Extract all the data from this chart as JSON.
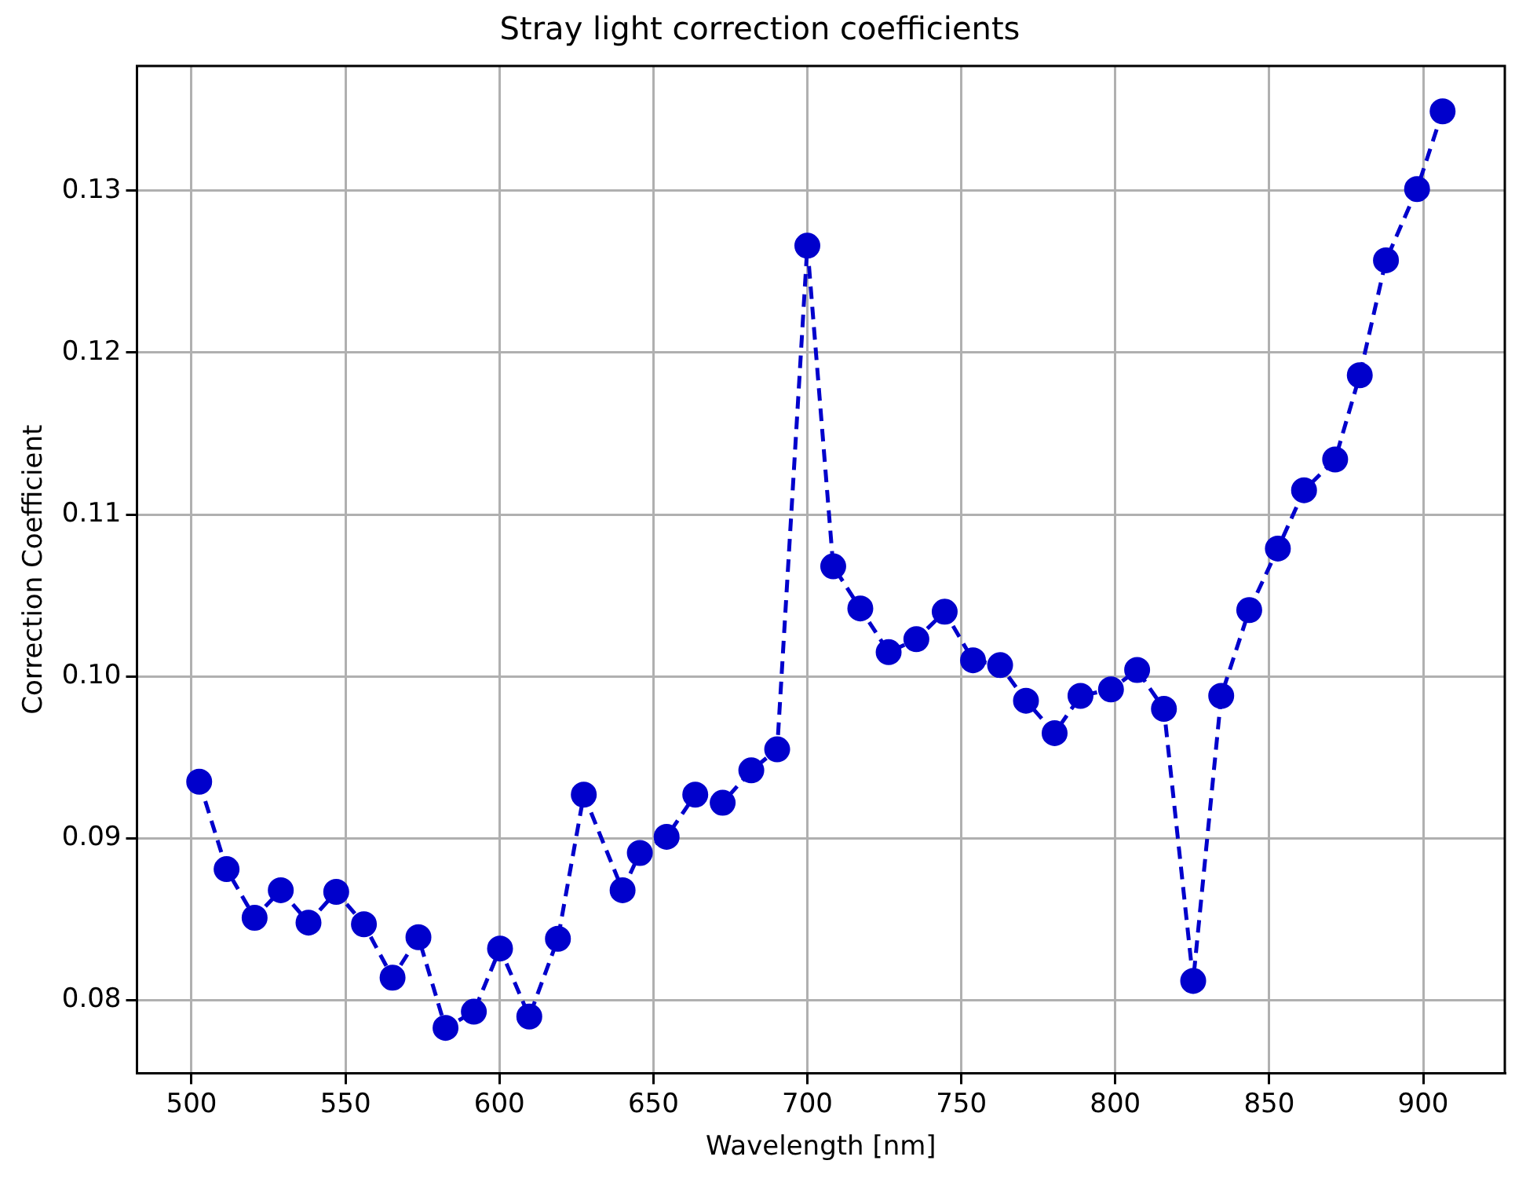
{
  "chart_data": {
    "type": "line",
    "title": "Stray light correction coefficients",
    "xlabel": "Wavelength [nm]",
    "ylabel": "Correction Coefficient",
    "x": [
      502.5,
      511.4,
      520.5,
      529,
      538,
      547,
      556,
      565.3,
      573.7,
      582.5,
      591.7,
      600.2,
      609.7,
      619,
      627.4,
      640,
      645.6,
      654.3,
      663.6,
      672.5,
      681.8,
      690.2,
      700,
      708.4,
      717.2,
      726.4,
      735.4,
      744.6,
      753.8,
      762.6,
      771,
      780.3,
      788.7,
      798.6,
      807.1,
      815.8,
      825.3,
      834.4,
      843.5,
      852.8,
      861.3,
      871.4,
      879.4,
      887.9,
      898,
      906.3
    ],
    "series": [
      {
        "color": "#0000cc",
        "values": [
          0.0935,
          0.0881,
          0.0851,
          0.0868,
          0.0848,
          0.0867,
          0.0847,
          0.0814,
          0.0839,
          0.0783,
          0.0793,
          0.0832,
          0.079,
          0.0838,
          0.0927,
          0.0868,
          0.0891,
          0.0901,
          0.0927,
          0.0922,
          0.0942,
          0.0955,
          0.1266,
          0.1068,
          0.1042,
          0.1015,
          0.1023,
          0.104,
          0.101,
          0.1007,
          0.0985,
          0.0965,
          0.0988,
          0.0992,
          0.1004,
          0.098,
          0.0812,
          0.0988,
          0.1041,
          0.1079,
          0.1115,
          0.1134,
          0.1186,
          0.1257,
          0.1301,
          0.1349
        ]
      }
    ],
    "xlim": [
      482.3,
      926.5
    ],
    "ylim": [
      0.0755,
      0.1377
    ],
    "xticks": [
      500,
      550,
      600,
      650,
      700,
      750,
      800,
      850,
      900
    ],
    "yticks": [
      {
        "value": 0.08,
        "label": "0.08"
      },
      {
        "value": 0.09,
        "label": "0.09"
      },
      {
        "value": 0.1,
        "label": "0.10"
      },
      {
        "value": 0.11,
        "label": "0.11"
      },
      {
        "value": 0.12,
        "label": "0.12"
      },
      {
        "value": 0.13,
        "label": "0.13"
      }
    ],
    "grid": true,
    "legend": false,
    "marker": "circle",
    "line_style": "dashed"
  }
}
